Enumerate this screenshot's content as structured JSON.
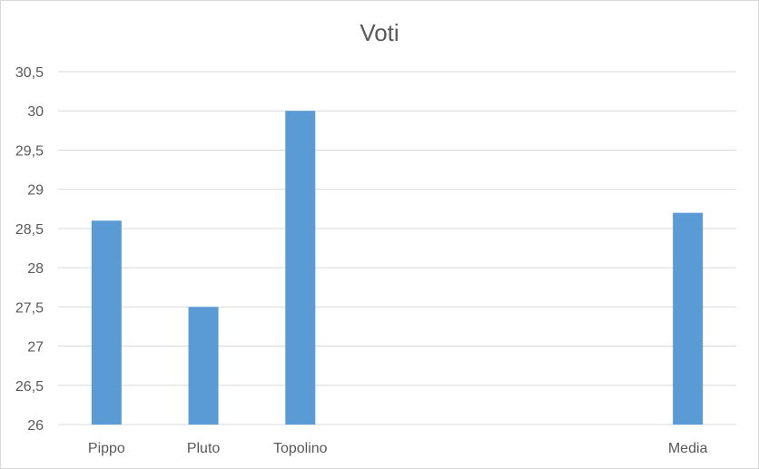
{
  "chart_data": {
    "type": "bar",
    "title": "Voti",
    "categories": [
      "Pippo",
      "Pluto",
      "Topolino",
      "",
      "",
      "",
      "Media"
    ],
    "values": [
      28.6,
      27.5,
      30,
      null,
      null,
      null,
      28.7
    ],
    "ylim": [
      26,
      30.5
    ],
    "yticks": [
      "26",
      "26,5",
      "27",
      "27,5",
      "28",
      "28,5",
      "29",
      "29,5",
      "30",
      "30,5"
    ],
    "grid": true,
    "legend": "none",
    "bar_color": "#5b9bd5",
    "grid_color": "#d9d9d9",
    "text_color": "#595959"
  }
}
